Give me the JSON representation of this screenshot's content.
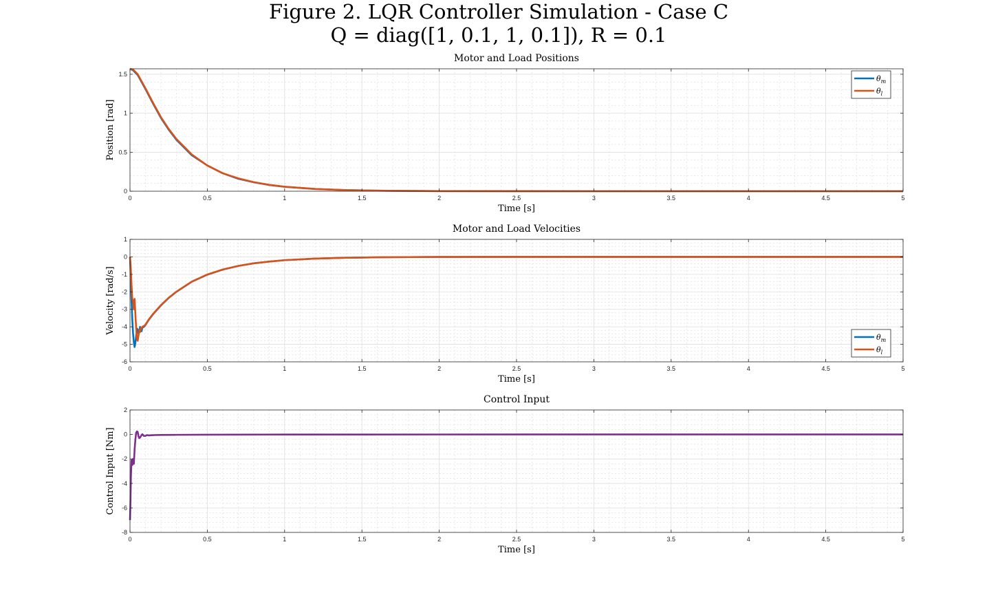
{
  "figure": {
    "title_line1": "Figure 2. LQR Controller Simulation - Case C",
    "title_line2": "Q = diag([1, 0.1, 1, 0.1]), R = 0.1"
  },
  "colors": {
    "theta_m": "#0072BD",
    "theta_l": "#D95319",
    "control": "#7E2F8E"
  },
  "chart_data": [
    {
      "type": "line",
      "title": "Motor and Load Positions",
      "xlabel": "Time [s]",
      "ylabel": "Position [rad]",
      "xlim": [
        0,
        5
      ],
      "ylim": [
        0,
        1.57
      ],
      "xticks": [
        0,
        0.5,
        1,
        1.5,
        2,
        2.5,
        3,
        3.5,
        4,
        4.5,
        5
      ],
      "xtick_labels": [
        "0",
        "0.5",
        "1",
        "1.5",
        "2",
        "2.5",
        "3",
        "3.5",
        "4",
        "4.5",
        "5"
      ],
      "yticks": [
        0,
        0.5,
        1,
        1.5
      ],
      "ytick_labels": [
        "0",
        "0.5",
        "1",
        "1.5"
      ],
      "grid": true,
      "minor_grid": true,
      "legend": {
        "placement": "top-right",
        "entries": [
          "θm",
          "θl"
        ]
      },
      "series": [
        {
          "name": "θm",
          "color": "#0072BD",
          "x": [
            0,
            0.02,
            0.05,
            0.1,
            0.15,
            0.2,
            0.25,
            0.3,
            0.4,
            0.5,
            0.6,
            0.7,
            0.8,
            0.9,
            1.0,
            1.2,
            1.4,
            1.6,
            1.8,
            2.0,
            2.5,
            3.0,
            3.5,
            4.0,
            4.5,
            5.0
          ],
          "y": [
            1.57,
            1.55,
            1.49,
            1.31,
            1.12,
            0.94,
            0.79,
            0.66,
            0.46,
            0.33,
            0.23,
            0.16,
            0.115,
            0.08,
            0.057,
            0.028,
            0.014,
            0.007,
            0.0035,
            0.0017,
            0.0003,
            5e-05,
            0,
            0,
            0,
            0
          ]
        },
        {
          "name": "θl",
          "color": "#D95319",
          "x": [
            0,
            0.02,
            0.05,
            0.1,
            0.15,
            0.2,
            0.25,
            0.3,
            0.4,
            0.5,
            0.6,
            0.7,
            0.8,
            0.9,
            1.0,
            1.2,
            1.4,
            1.6,
            1.8,
            2.0,
            2.5,
            3.0,
            3.5,
            4.0,
            4.5,
            5.0
          ],
          "y": [
            1.57,
            1.56,
            1.5,
            1.32,
            1.13,
            0.95,
            0.8,
            0.67,
            0.47,
            0.33,
            0.23,
            0.165,
            0.117,
            0.082,
            0.058,
            0.029,
            0.014,
            0.007,
            0.0035,
            0.0017,
            0.0003,
            5e-05,
            0,
            0,
            0,
            0
          ]
        }
      ]
    },
    {
      "type": "line",
      "title": "Motor and Load Velocities",
      "xlabel": "Time [s]",
      "ylabel": "Velocity [rad/s]",
      "xlim": [
        0,
        5
      ],
      "ylim": [
        -6,
        1
      ],
      "xticks": [
        0,
        0.5,
        1,
        1.5,
        2,
        2.5,
        3,
        3.5,
        4,
        4.5,
        5
      ],
      "xtick_labels": [
        "0",
        "0.5",
        "1",
        "1.5",
        "2",
        "2.5",
        "3",
        "3.5",
        "4",
        "4.5",
        "5"
      ],
      "yticks": [
        -6,
        -5,
        -4,
        -3,
        -2,
        -1,
        0,
        1
      ],
      "ytick_labels": [
        "-6",
        "-5",
        "-4",
        "-3",
        "-2",
        "-1",
        "0",
        "1"
      ],
      "grid": true,
      "minor_grid": true,
      "legend": {
        "placement": "bottom-right",
        "entries": [
          "θm",
          "θl"
        ]
      },
      "series": [
        {
          "name": "θm",
          "color": "#0072BD",
          "x": [
            0,
            0.005,
            0.01,
            0.015,
            0.02,
            0.025,
            0.03,
            0.035,
            0.04,
            0.045,
            0.05,
            0.055,
            0.06,
            0.065,
            0.07,
            0.075,
            0.08,
            0.09,
            0.1,
            0.12,
            0.15,
            0.2,
            0.25,
            0.3,
            0.4,
            0.5,
            0.6,
            0.7,
            0.8,
            0.9,
            1.0,
            1.2,
            1.4,
            1.6,
            1.8,
            2.0,
            2.5,
            3.0,
            3.5,
            4.0,
            4.5,
            5.0
          ],
          "y": [
            0,
            -1.2,
            -2.5,
            -3.6,
            -4.4,
            -4.9,
            -5.15,
            -4.9,
            -4.5,
            -4.1,
            -4.15,
            -4.4,
            -4.3,
            -4.0,
            -4.15,
            -4.25,
            -4.05,
            -4.0,
            -3.9,
            -3.62,
            -3.27,
            -2.78,
            -2.35,
            -2.0,
            -1.42,
            -1.02,
            -0.73,
            -0.52,
            -0.37,
            -0.27,
            -0.19,
            -0.1,
            -0.05,
            -0.025,
            -0.013,
            -0.006,
            0,
            0,
            0,
            0,
            0,
            0
          ]
        },
        {
          "name": "θl",
          "color": "#D95319",
          "x": [
            0,
            0.005,
            0.01,
            0.015,
            0.02,
            0.025,
            0.03,
            0.035,
            0.04,
            0.045,
            0.05,
            0.055,
            0.06,
            0.065,
            0.07,
            0.075,
            0.08,
            0.09,
            0.1,
            0.12,
            0.15,
            0.2,
            0.25,
            0.3,
            0.4,
            0.5,
            0.6,
            0.7,
            0.8,
            0.9,
            1.0,
            1.2,
            1.4,
            1.6,
            1.8,
            2.0,
            2.5,
            3.0,
            3.5,
            4.0,
            4.5,
            5.0
          ],
          "y": [
            0,
            -0.6,
            -1.6,
            -2.4,
            -2.5,
            -3.0,
            -2.4,
            -3.3,
            -4.1,
            -4.7,
            -4.8,
            -4.5,
            -4.2,
            -4.3,
            -4.05,
            -4.1,
            -4.0,
            -3.95,
            -3.88,
            -3.6,
            -3.25,
            -2.76,
            -2.34,
            -1.99,
            -1.41,
            -1.01,
            -0.72,
            -0.52,
            -0.37,
            -0.27,
            -0.19,
            -0.1,
            -0.05,
            -0.025,
            -0.013,
            -0.006,
            0,
            0,
            0,
            0,
            0,
            0
          ]
        }
      ]
    },
    {
      "type": "line",
      "title": "Control Input",
      "xlabel": "Time [s]",
      "ylabel": "Control Input [Nm]",
      "xlim": [
        0,
        5
      ],
      "ylim": [
        -8,
        2
      ],
      "xticks": [
        0,
        0.5,
        1,
        1.5,
        2,
        2.5,
        3,
        3.5,
        4,
        4.5,
        5
      ],
      "xtick_labels": [
        "0",
        "0.5",
        "1",
        "1.5",
        "2",
        "2.5",
        "3",
        "3.5",
        "4",
        "4.5",
        "5"
      ],
      "yticks": [
        -8,
        -6,
        -4,
        -2,
        0,
        2
      ],
      "ytick_labels": [
        "-8",
        "-6",
        "-4",
        "-2",
        "0",
        "2"
      ],
      "grid": true,
      "minor_grid": true,
      "legend": null,
      "series": [
        {
          "name": "",
          "color": "#7E2F8E",
          "x": [
            0,
            0.003,
            0.006,
            0.01,
            0.015,
            0.02,
            0.025,
            0.03,
            0.035,
            0.04,
            0.045,
            0.05,
            0.055,
            0.06,
            0.065,
            0.07,
            0.075,
            0.08,
            0.085,
            0.09,
            0.1,
            0.11,
            0.12,
            0.14,
            0.16,
            0.2,
            0.3,
            0.5,
            0.8,
            1.0,
            1.5,
            2.0,
            3.0,
            4.0,
            5.0
          ],
          "y": [
            -7.0,
            -5.5,
            -3.5,
            -2.1,
            -2.5,
            -2.0,
            -2.4,
            -1.2,
            -0.4,
            0.15,
            0.25,
            0.2,
            -0.15,
            -0.3,
            -0.25,
            -0.15,
            -0.05,
            0.02,
            -0.05,
            -0.12,
            -0.12,
            -0.05,
            -0.08,
            -0.06,
            -0.05,
            -0.04,
            -0.03,
            -0.02,
            -0.01,
            -0.006,
            -0.002,
            -0.001,
            0,
            0,
            0
          ]
        }
      ]
    }
  ]
}
